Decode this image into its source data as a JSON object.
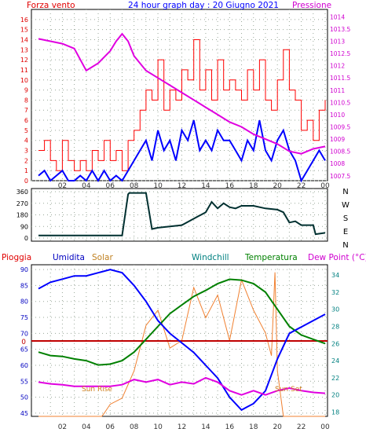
{
  "colors": {
    "background": "#ffffff",
    "plot_bg": "#ffffff",
    "grid": "#9aa89a",
    "axis_left": "#e00000",
    "axis_right": "#d000d0",
    "wind_speed": "#ff0000",
    "wind_avg": "#0000ff",
    "pressure": "#e000e0",
    "wind_dir": "#003030",
    "humidity": "#0000ff",
    "temperature": "#008000",
    "dew_point": "#e000e0",
    "solar": "#f08030",
    "rain": "#c00000",
    "sun_text": "#d08020",
    "compass": "#000000",
    "temp_axis": "#008080"
  },
  "chart_data": [
    {
      "type": "line",
      "title": "24 hour graph day : 20 Giugno 2021",
      "left_label": "Forza vento",
      "right_label": "Pressione",
      "x_ticks": [
        "02",
        "04",
        "06",
        "08",
        "10",
        "12",
        "14",
        "16",
        "18",
        "20",
        "22",
        "00"
      ],
      "ylim_left": [
        0,
        17
      ],
      "y_ticks_left": [
        "0",
        "1",
        "2",
        "3",
        "4",
        "5",
        "6",
        "7",
        "8",
        "9",
        "10",
        "11",
        "12",
        "13",
        "14",
        "15",
        "16"
      ],
      "ylim_right": [
        1007.3,
        1014.3
      ],
      "y_ticks_right": [
        "1007.5",
        "1008",
        "1008.5",
        "1009",
        "1009.5",
        "1010",
        "1010.5",
        "1011",
        "1011.5",
        "1012",
        "1012.5",
        "1013",
        "1013.5",
        "1014"
      ],
      "series": [
        {
          "name": "Forza vento",
          "x": [
            0,
            0.5,
            1,
            1.5,
            2,
            2.5,
            3,
            3.5,
            4,
            4.5,
            5,
            5.5,
            6,
            6.5,
            7,
            7.5,
            8,
            8.5,
            9,
            9.5,
            10,
            10.5,
            11,
            11.5,
            12,
            12.5,
            13,
            13.5,
            14,
            14.5,
            15,
            15.5,
            16,
            16.5,
            17,
            17.5,
            18,
            18.5,
            19,
            19.5,
            20,
            20.5,
            21,
            21.5,
            22,
            22.5,
            23,
            23.5,
            24
          ],
          "values": [
            3,
            4,
            2,
            1,
            4,
            2,
            1,
            2,
            1,
            3,
            2,
            4,
            2,
            3,
            1,
            4,
            5,
            7,
            9,
            8,
            12,
            7,
            9,
            8,
            11,
            10,
            14,
            9,
            11,
            8,
            12,
            9,
            10,
            9,
            8,
            11,
            9,
            12,
            8,
            7,
            10,
            13,
            9,
            8,
            5,
            6,
            4,
            7,
            8
          ]
        },
        {
          "name": "Media vento",
          "x": [
            0,
            0.5,
            1,
            1.5,
            2,
            2.5,
            3,
            3.5,
            4,
            4.5,
            5,
            5.5,
            6,
            6.5,
            7,
            7.5,
            8,
            8.5,
            9,
            9.5,
            10,
            10.5,
            11,
            11.5,
            12,
            12.5,
            13,
            13.5,
            14,
            14.5,
            15,
            15.5,
            16,
            16.5,
            17,
            17.5,
            18,
            18.5,
            19,
            19.5,
            20,
            20.5,
            21,
            21.5,
            22,
            22.5,
            23,
            23.5,
            24
          ],
          "values": [
            0.5,
            1,
            0,
            0.5,
            1,
            0,
            0,
            0.5,
            0,
            1,
            0,
            1,
            0,
            0.5,
            0,
            1,
            2,
            3,
            4,
            2,
            5,
            3,
            4,
            2,
            5,
            4,
            6,
            3,
            4,
            3,
            5,
            4,
            4,
            3,
            2,
            4,
            3,
            6,
            3,
            2,
            4,
            5,
            3,
            2,
            0,
            1,
            2,
            3,
            2
          ]
        },
        {
          "name": "Pressione",
          "x": [
            0,
            1,
            2,
            3,
            4,
            5,
            6,
            6.5,
            7,
            7.5,
            8,
            9,
            10,
            11,
            12,
            13,
            14,
            15,
            16,
            17,
            18,
            19,
            20,
            21,
            22,
            23,
            24
          ],
          "values": [
            1013.1,
            1013,
            1012.9,
            1012.7,
            1011.8,
            1012.1,
            1012.6,
            1013,
            1013.3,
            1013,
            1012.4,
            1011.8,
            1011.5,
            1011.2,
            1010.9,
            1010.6,
            1010.3,
            1010,
            1009.7,
            1009.5,
            1009.2,
            1009,
            1008.8,
            1008.5,
            1008.4,
            1008.6,
            1008.7
          ]
        }
      ]
    },
    {
      "type": "line",
      "y_ticks_left": [
        "0",
        "90",
        "180",
        "270",
        "360"
      ],
      "ylim": [
        0,
        360
      ],
      "compass_labels": [
        "N",
        "W",
        "S",
        "E",
        "N"
      ],
      "series": [
        {
          "name": "Direzione vento",
          "x": [
            0,
            2,
            4,
            6,
            7,
            7.5,
            7.6,
            8,
            8.5,
            9,
            9.5,
            10,
            11,
            12,
            13,
            14,
            14.5,
            15,
            15.5,
            16,
            16.5,
            17,
            18,
            19,
            20,
            20.5,
            21,
            21.5,
            22,
            23,
            23.2,
            24
          ],
          "values": [
            20,
            20,
            20,
            20,
            20,
            340,
            350,
            350,
            350,
            350,
            70,
            80,
            90,
            100,
            150,
            200,
            280,
            230,
            270,
            240,
            230,
            250,
            250,
            230,
            220,
            200,
            120,
            130,
            100,
            100,
            30,
            40
          ]
        }
      ]
    },
    {
      "type": "line",
      "labels": {
        "rain": "Pioggia",
        "humidity": "Umidita",
        "solar": "Solar",
        "windchill": "Windchill",
        "temperature": "Temperatura",
        "dew_point": "Dew Point (°C)"
      },
      "y_ticks_left": [
        "45",
        "50",
        "55",
        "60",
        "65",
        "70",
        "75",
        "80",
        "85",
        "90"
      ],
      "ylim_left": [
        44,
        91.5
      ],
      "rain_zero_label": "0",
      "y_ticks_right": [
        "18",
        "20",
        "22",
        "24",
        "26",
        "28",
        "30",
        "32",
        "34"
      ],
      "ylim_right": [
        17.5,
        35.2
      ],
      "sun_rise_label": "Sun Rise",
      "sun_set_label": "Sun Set",
      "series": [
        {
          "name": "Umidita",
          "x": [
            0,
            1,
            2,
            3,
            4,
            5,
            6,
            7,
            8,
            9,
            10,
            11,
            12,
            13,
            14,
            15,
            16,
            17,
            17.5,
            18,
            19,
            20,
            21,
            22,
            23,
            24
          ],
          "values": [
            84,
            86,
            87,
            88,
            88,
            89,
            90,
            89,
            85,
            80,
            74,
            70,
            67,
            64,
            60,
            56,
            50,
            46,
            47,
            48,
            52,
            62,
            70,
            72,
            74,
            76
          ]
        },
        {
          "name": "Temperatura",
          "x": [
            0,
            1,
            2,
            3,
            4,
            5,
            6,
            7,
            8,
            9,
            10,
            11,
            12,
            13,
            14,
            15,
            16,
            17,
            18,
            19,
            20,
            21,
            22,
            23,
            24
          ],
          "values": [
            25,
            24.6,
            24.5,
            24.2,
            24,
            23.5,
            23.6,
            24,
            25,
            26.5,
            28,
            29.5,
            30.5,
            31.5,
            32.2,
            33,
            33.5,
            33.4,
            33,
            32,
            30,
            28,
            27,
            26.5,
            26
          ]
        },
        {
          "name": "Dew Point (°C)",
          "x": [
            0,
            1,
            2,
            3,
            4,
            5,
            6,
            7,
            8,
            9,
            10,
            11,
            12,
            13,
            14,
            15,
            16,
            17,
            18,
            19,
            20,
            21,
            22,
            23,
            24
          ],
          "values": [
            21.5,
            21.3,
            21.2,
            21,
            21,
            21,
            21,
            21.2,
            21.8,
            21.5,
            21.8,
            21.2,
            21.5,
            21.3,
            22,
            21.5,
            20.5,
            20,
            20.5,
            20,
            20.5,
            20.8,
            20.5,
            20.3,
            20.2
          ]
        },
        {
          "name": "Solar",
          "x": [
            0,
            5.3,
            5.5,
            6,
            7,
            8,
            9,
            10,
            11,
            12,
            13,
            14,
            15,
            16,
            17,
            18,
            19,
            19.5,
            19.8,
            20,
            20.5,
            24
          ],
          "values": [
            0,
            0,
            20,
            80,
            120,
            300,
            600,
            700,
            450,
            500,
            850,
            650,
            800,
            500,
            900,
            700,
            550,
            400,
            950,
            300,
            0,
            0
          ]
        }
      ]
    }
  ]
}
